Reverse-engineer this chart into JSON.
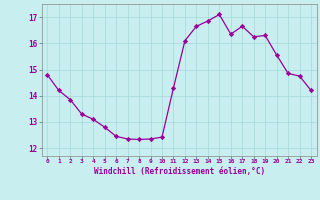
{
  "x": [
    0,
    1,
    2,
    3,
    4,
    5,
    6,
    7,
    8,
    9,
    10,
    11,
    12,
    13,
    14,
    15,
    16,
    17,
    18,
    19,
    20,
    21,
    22,
    23
  ],
  "y": [
    14.8,
    14.2,
    13.85,
    13.3,
    13.1,
    12.8,
    12.45,
    12.35,
    12.33,
    12.35,
    12.42,
    14.3,
    16.1,
    16.65,
    16.85,
    17.1,
    16.35,
    16.65,
    16.25,
    16.3,
    15.55,
    14.85,
    14.75,
    14.2
  ],
  "line_color": "#990099",
  "marker": "D",
  "marker_size": 2.2,
  "bg_color": "#c8eef0",
  "grid_color": "#aadddd",
  "xlabel": "Windchill (Refroidissement éolien,°C)",
  "xlabel_color": "#990099",
  "tick_color": "#990099",
  "ylim": [
    11.7,
    17.5
  ],
  "xlim": [
    -0.5,
    23.5
  ],
  "yticks": [
    12,
    13,
    14,
    15,
    16,
    17
  ],
  "xtick_labels": [
    "0",
    "1",
    "2",
    "3",
    "4",
    "5",
    "6",
    "7",
    "8",
    "9",
    "10",
    "11",
    "12",
    "13",
    "14",
    "15",
    "16",
    "17",
    "18",
    "19",
    "20",
    "21",
    "22",
    "23"
  ]
}
